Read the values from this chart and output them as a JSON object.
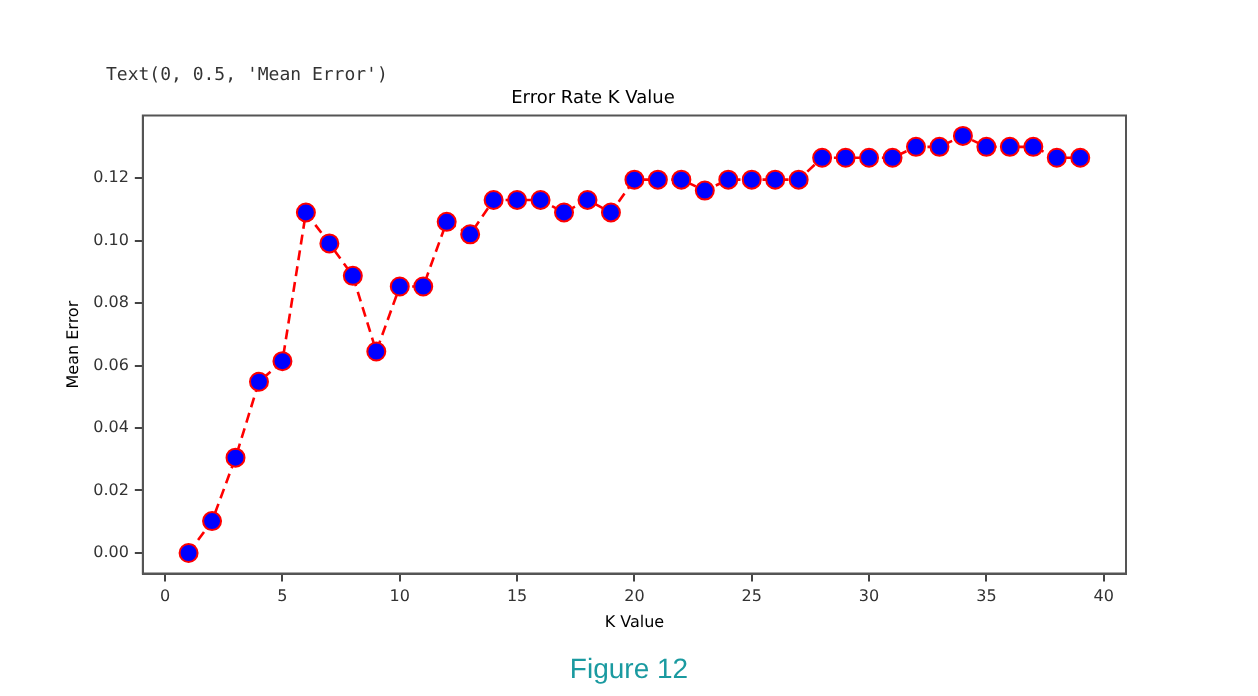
{
  "chart_data": {
    "type": "line",
    "title": "Error Rate K Value",
    "xlabel": "K Value",
    "ylabel": "Mean Error",
    "annotations": [
      "Text(0, 0.5, 'Mean Error')",
      "Figure 12"
    ],
    "x": [
      1,
      2,
      3,
      4,
      5,
      6,
      7,
      8,
      9,
      10,
      11,
      12,
      13,
      14,
      15,
      16,
      17,
      18,
      19,
      20,
      21,
      22,
      23,
      24,
      25,
      26,
      27,
      28,
      29,
      30,
      31,
      32,
      33,
      34,
      35,
      36,
      37,
      38,
      39
    ],
    "series": [
      {
        "color": "#ff0000",
        "colors": [
          "#0000ff",
          "#0000ff",
          "#0000ff",
          "#0000ff",
          "#0000ff",
          "#0000ff",
          "#0000ff",
          "#0000ff",
          "#0000ff",
          "#0000ff",
          "#0000ff",
          "#0000ff",
          "#0000ff",
          "#0000ff",
          "#0000ff",
          "#0000ff",
          "#0000ff",
          "#0000ff",
          "#0000ff",
          "#0000ff",
          "#0000ff",
          "#0000ff",
          "#0000ff",
          "#0000ff",
          "#0000ff",
          "#0000ff",
          "#0000ff",
          "#0000ff",
          "#0000ff",
          "#0000ff",
          "#0000ff",
          "#0000ff",
          "#0000ff",
          "#0000ff",
          "#0000ff",
          "#0000ff",
          "#0000ff",
          "#0000ff",
          "#0000ff"
        ],
        "values": [
          0,
          0.0102,
          0.0305,
          0.0548,
          0.0614,
          0.109,
          0.0991,
          0.0887,
          0.0645,
          0.0853,
          0.0853,
          0.106,
          0.102,
          0.113,
          0.113,
          0.113,
          0.109,
          0.113,
          0.109,
          0.1195,
          0.1195,
          0.1195,
          0.116,
          0.1195,
          0.1195,
          0.1195,
          0.1195,
          0.1265,
          0.1265,
          0.1265,
          0.1265,
          0.13,
          0.13,
          0.1335,
          0.13,
          0.13,
          0.13,
          0.1265,
          0.1265
        ]
      }
    ],
    "xlim": [
      -0.95,
      40.95
    ],
    "xticks": [
      0,
      5,
      10,
      15,
      20,
      25,
      30,
      35,
      40
    ],
    "ylim": [
      -0.0066,
      0.14
    ],
    "yticks": [
      {
        "value": 0,
        "label": "0.00"
      },
      {
        "value": 0.02,
        "label": "0.02"
      },
      {
        "value": 0.04,
        "label": "0.04"
      },
      {
        "value": 0.06,
        "label": "0.06"
      },
      {
        "value": 0.08,
        "label": "0.08"
      },
      {
        "value": 0.1,
        "label": "0.10"
      },
      {
        "value": 0.12,
        "label": "0.12"
      }
    ],
    "grid": false,
    "legend": false,
    "marker": "circle",
    "line_style": "dashed"
  }
}
